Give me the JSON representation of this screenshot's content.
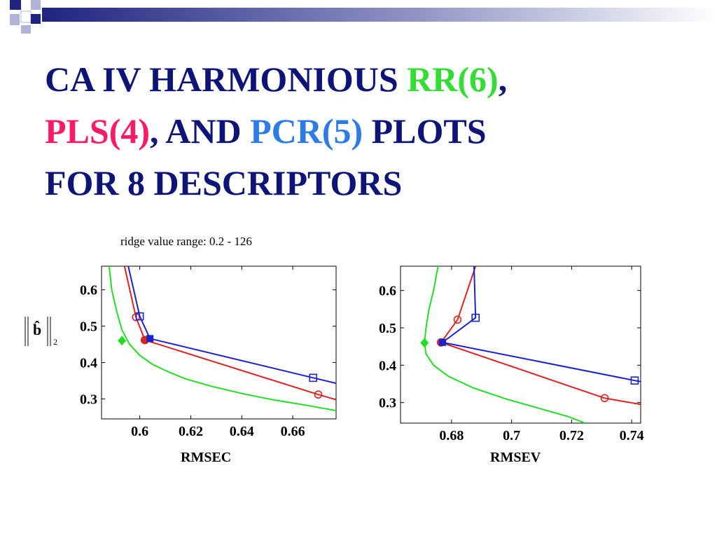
{
  "title": {
    "line1_a": "CA IV  HARMONIOUS  ",
    "line1_b": "RR(6)",
    "line1_c": ",",
    "line2_a": "PLS(4)",
    "line2_b": ",  AND  ",
    "line2_c": "PCR(5)",
    "line2_d": "  PLOTS",
    "line3": "FOR  8  DESCRIPTORS"
  },
  "caption": "ridge value range: 0.2 - 126",
  "norm_label": {
    "symbol": "b̂",
    "subscript": "2"
  },
  "colors": {
    "rr": "#22dd22",
    "pls": "#dd2222",
    "pcr": "#1a22cc",
    "title": "#0d1478"
  },
  "chart_data": [
    {
      "type": "line",
      "xlabel": "RMSEC",
      "ylabel": "||b̂||2",
      "xlim": [
        0.585,
        0.677
      ],
      "ylim": [
        0.245,
        0.665
      ],
      "xticks": [
        0.6,
        0.62,
        0.64,
        0.66
      ],
      "yticks": [
        0.3,
        0.4,
        0.5,
        0.6
      ],
      "xtick_labels": [
        "0.6",
        "0.62",
        "0.64",
        "0.66"
      ],
      "ytick_labels": [
        "0.3",
        "0.4",
        "0.5",
        "0.6"
      ],
      "grid": false,
      "series": [
        {
          "color": "#22dd22",
          "marker": "filled-diamond",
          "x": [
            0.588,
            0.589,
            0.591,
            0.593,
            0.596,
            0.6,
            0.605,
            0.611,
            0.618,
            0.628,
            0.64,
            0.652,
            0.665,
            0.677
          ],
          "y": [
            0.665,
            0.6,
            0.54,
            0.49,
            0.45,
            0.42,
            0.395,
            0.375,
            0.355,
            0.335,
            0.315,
            0.298,
            0.283,
            0.268
          ],
          "highlight": {
            "x": 0.593,
            "y": 0.46
          }
        },
        {
          "color": "#dd2222",
          "marker": "open-circle",
          "x": [
            0.594,
            0.5985,
            0.602,
            0.67,
            0.677
          ],
          "y": [
            0.665,
            0.525,
            0.462,
            0.312,
            0.298
          ],
          "highlight": {
            "x": 0.602,
            "y": 0.462
          }
        },
        {
          "color": "#1a22cc",
          "marker": "open-square",
          "x": [
            0.5955,
            0.6,
            0.604,
            0.668,
            0.677
          ],
          "y": [
            0.665,
            0.527,
            0.466,
            0.358,
            0.343
          ],
          "highlight": {
            "x": 0.604,
            "y": 0.466
          }
        }
      ]
    },
    {
      "type": "line",
      "xlabel": "RMSEV",
      "ylabel": "",
      "xlim": [
        0.663,
        0.743
      ],
      "ylim": [
        0.245,
        0.665
      ],
      "xticks": [
        0.68,
        0.7,
        0.72,
        0.74
      ],
      "yticks": [
        0.3,
        0.4,
        0.5,
        0.6
      ],
      "xtick_labels": [
        "0.68",
        "0.7",
        "0.72",
        "0.74"
      ],
      "ytick_labels": [
        "0.3",
        "0.4",
        "0.5",
        "0.6"
      ],
      "grid": false,
      "series": [
        {
          "color": "#22dd22",
          "marker": "filled-diamond",
          "x": [
            0.6755,
            0.674,
            0.6725,
            0.6715,
            0.671,
            0.6715,
            0.674,
            0.679,
            0.687,
            0.698,
            0.709,
            0.719,
            0.7245
          ],
          "y": [
            0.665,
            0.6,
            0.55,
            0.5,
            0.46,
            0.43,
            0.4,
            0.37,
            0.34,
            0.31,
            0.285,
            0.262,
            0.245
          ],
          "highlight": {
            "x": 0.671,
            "y": 0.46
          }
        },
        {
          "color": "#dd2222",
          "marker": "open-circle",
          "x": [
            0.688,
            0.682,
            0.6765,
            0.731,
            0.743
          ],
          "y": [
            0.665,
            0.522,
            0.461,
            0.312,
            0.295
          ],
          "highlight": {
            "x": 0.6765,
            "y": 0.461
          }
        },
        {
          "color": "#1a22cc",
          "marker": "open-square",
          "x": [
            0.6875,
            0.688,
            0.677,
            0.741,
            0.743
          ],
          "y": [
            0.665,
            0.527,
            0.461,
            0.359,
            0.356
          ],
          "highlight": {
            "x": 0.677,
            "y": 0.461
          }
        }
      ]
    }
  ]
}
